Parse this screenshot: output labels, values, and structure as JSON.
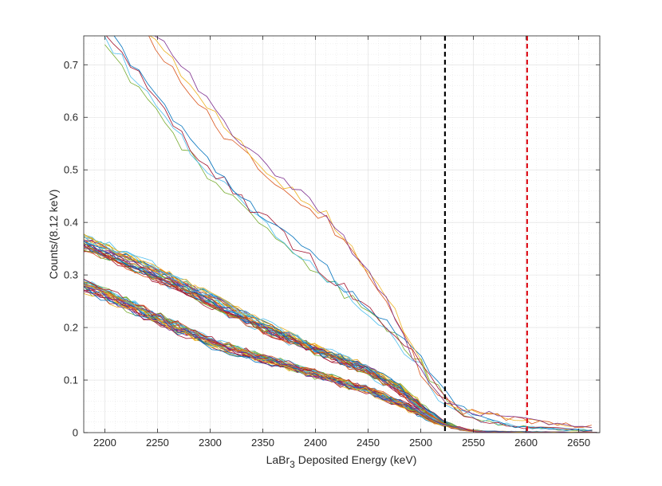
{
  "chart_data": {
    "type": "line",
    "title": "",
    "xlabel_parts": [
      "LaBr",
      "3",
      " Deposited Energy (keV)"
    ],
    "ylabel": "Counts/(8.12 keV)",
    "xlim": [
      2180,
      2670
    ],
    "ylim": [
      0,
      0.755
    ],
    "xticks": [
      2200,
      2250,
      2300,
      2350,
      2400,
      2450,
      2500,
      2550,
      2600,
      2650
    ],
    "yticks": [
      0,
      0.1,
      0.2,
      0.3,
      0.4,
      0.5,
      0.6,
      0.7
    ],
    "ytick_labels": [
      "0",
      "0.1",
      "0.2",
      "0.3",
      "0.4",
      "0.5",
      "0.6",
      "0.7"
    ],
    "grid": true,
    "minor_grid": true,
    "bin_width_keV": 8.12,
    "vlines": [
      {
        "name": "black-dashed-line",
        "x": 2523,
        "color": "#000000",
        "style": "dashed"
      },
      {
        "name": "red-dashed-line",
        "x": 2601,
        "color": "#e0141e",
        "style": "dashed"
      }
    ],
    "palette": [
      "#0072bd",
      "#d95319",
      "#edb120",
      "#7e2f8e",
      "#77ac30",
      "#4dbeee",
      "#a2142f"
    ],
    "groups": [
      {
        "name": "upper-band",
        "count": 30,
        "noise": 0.008,
        "points": [
          [
            2180,
            0.365
          ],
          [
            2250,
            0.305
          ],
          [
            2300,
            0.255
          ],
          [
            2350,
            0.205
          ],
          [
            2400,
            0.16
          ],
          [
            2450,
            0.12
          ],
          [
            2480,
            0.085
          ],
          [
            2500,
            0.05
          ],
          [
            2520,
            0.02
          ],
          [
            2540,
            0.006
          ],
          [
            2560,
            0.002
          ],
          [
            2670,
            0.0
          ]
        ]
      },
      {
        "name": "lower-band",
        "count": 30,
        "noise": 0.007,
        "points": [
          [
            2180,
            0.28
          ],
          [
            2250,
            0.215
          ],
          [
            2300,
            0.17
          ],
          [
            2350,
            0.14
          ],
          [
            2400,
            0.11
          ],
          [
            2450,
            0.08
          ],
          [
            2480,
            0.055
          ],
          [
            2500,
            0.035
          ],
          [
            2520,
            0.015
          ],
          [
            2540,
            0.005
          ],
          [
            2560,
            0.001
          ],
          [
            2670,
            0.0
          ]
        ]
      },
      {
        "name": "mid-curves",
        "count": 4,
        "noise": 0.012,
        "points": [
          [
            2200,
            0.76
          ],
          [
            2240,
            0.65
          ],
          [
            2270,
            0.57
          ],
          [
            2300,
            0.5
          ],
          [
            2330,
            0.44
          ],
          [
            2360,
            0.39
          ],
          [
            2400,
            0.32
          ],
          [
            2440,
            0.25
          ],
          [
            2470,
            0.2
          ],
          [
            2500,
            0.13
          ],
          [
            2520,
            0.07
          ],
          [
            2540,
            0.04
          ],
          [
            2570,
            0.02
          ],
          [
            2600,
            0.01
          ],
          [
            2670,
            0.003
          ]
        ]
      },
      {
        "name": "high-curves",
        "count": 3,
        "noise": 0.01,
        "points": [
          [
            2240,
            0.76
          ],
          [
            2280,
            0.66
          ],
          [
            2310,
            0.58
          ],
          [
            2340,
            0.52
          ],
          [
            2380,
            0.45
          ],
          [
            2410,
            0.41
          ],
          [
            2440,
            0.33
          ],
          [
            2470,
            0.24
          ],
          [
            2500,
            0.12
          ],
          [
            2520,
            0.065
          ],
          [
            2540,
            0.045
          ],
          [
            2570,
            0.032
          ],
          [
            2600,
            0.022
          ],
          [
            2640,
            0.015
          ],
          [
            2670,
            0.01
          ]
        ]
      }
    ]
  }
}
